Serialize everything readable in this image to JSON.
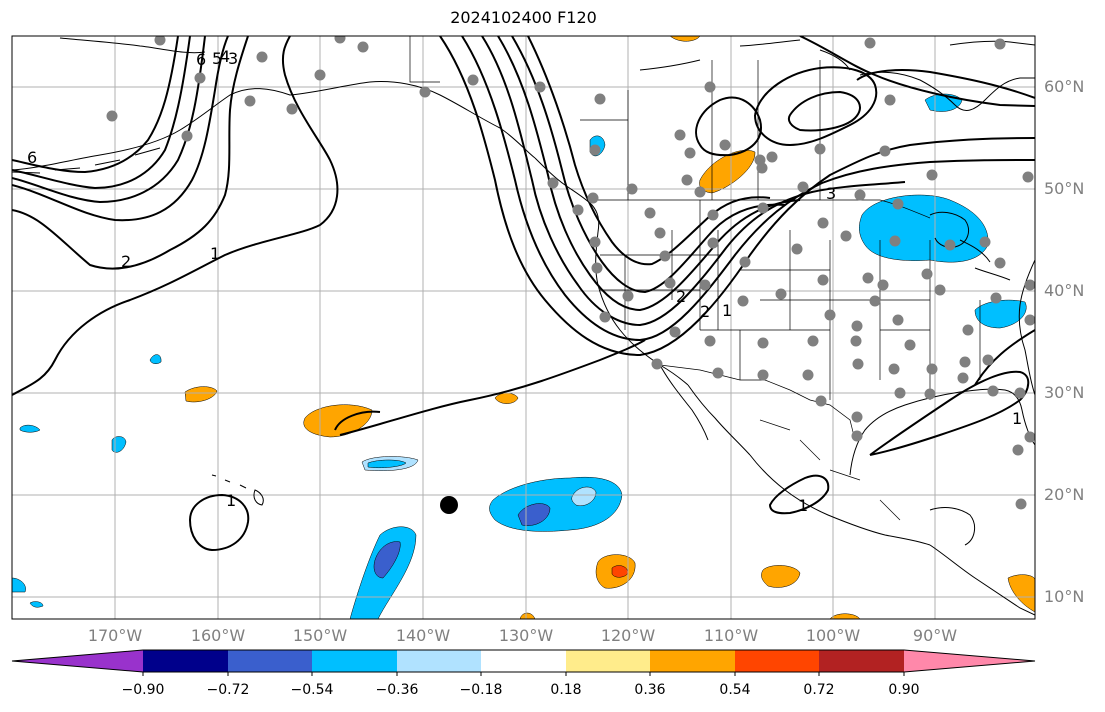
{
  "title": "2024102400 F120",
  "lat_labels": [
    "60°N",
    "50°N",
    "40°N",
    "30°N",
    "20°N",
    "10°N"
  ],
  "lon_labels": [
    "170°W",
    "160°W",
    "150°W",
    "140°W",
    "130°W",
    "120°W",
    "110°W",
    "100°W",
    "90°W"
  ],
  "contour_labels": [
    "6",
    "5",
    "4",
    "3",
    "2",
    "1",
    "6",
    "3",
    "2",
    "1",
    "2",
    "1",
    "1",
    "1"
  ],
  "colorbar": {
    "ticks": [
      "−0.90",
      "−0.72",
      "−0.54",
      "−0.36",
      "−0.18",
      "0.18",
      "0.36",
      "0.54",
      "0.72",
      "0.90"
    ],
    "colors": [
      "#9932cc",
      "#00008b",
      "#3a5fcd",
      "#00bfff",
      "#b0e2ff",
      "#ffffff",
      "#ffec8b",
      "#ffa500",
      "#ff4500",
      "#b22222",
      "#ff88aa"
    ]
  },
  "station_marker_color": "#808080",
  "storm_marker_color": "#000000"
}
